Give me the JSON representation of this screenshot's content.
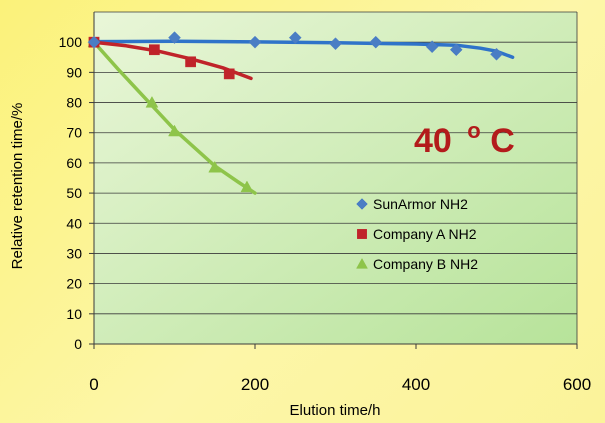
{
  "chart_data": {
    "type": "scatter",
    "title": "",
    "annotation": {
      "text": "40",
      "superscript": "o",
      "unit": "C",
      "color": "#b31b1b"
    },
    "xlabel": "Elution time/h",
    "ylabel": "Relative retention time/%",
    "xlim": [
      0,
      600
    ],
    "ylim": [
      0,
      110
    ],
    "x_ticks": [
      0,
      200,
      400,
      600
    ],
    "y_ticks": [
      0,
      10,
      20,
      30,
      40,
      50,
      60,
      70,
      80,
      90,
      100
    ],
    "grid": true,
    "legend_position": "right",
    "plot_background": [
      "#e9f6d8",
      "#b7e39a"
    ],
    "series": [
      {
        "name": "SunArmor NH2",
        "color": "#4a7dc4",
        "line_color": "#2f73c9",
        "marker": "diamond",
        "points": [
          [
            0,
            100
          ],
          [
            100,
            101.5
          ],
          [
            200,
            100
          ],
          [
            250,
            101.5
          ],
          [
            300,
            99.5
          ],
          [
            350,
            100
          ],
          [
            420,
            98.5
          ],
          [
            450,
            97.5
          ],
          [
            500,
            96
          ]
        ],
        "trend": [
          [
            0,
            100.2
          ],
          [
            100,
            100.3
          ],
          [
            200,
            100.1
          ],
          [
            300,
            99.8
          ],
          [
            400,
            99.4
          ],
          [
            450,
            99
          ],
          [
            480,
            98
          ],
          [
            500,
            97
          ],
          [
            520,
            95
          ]
        ]
      },
      {
        "name": "Company A NH2",
        "color": "#c0232a",
        "line_color": "#c0232a",
        "marker": "square",
        "points": [
          [
            0,
            100
          ],
          [
            75,
            97.5
          ],
          [
            120,
            93.5
          ],
          [
            168,
            89.5
          ]
        ],
        "trend": [
          [
            0,
            100
          ],
          [
            40,
            98.8
          ],
          [
            80,
            97
          ],
          [
            120,
            94.5
          ],
          [
            160,
            91.5
          ],
          [
            195,
            88
          ]
        ]
      },
      {
        "name": "Company B NH2",
        "color": "#8ec44a",
        "line_color": "#8ec44a",
        "marker": "triangle",
        "points": [
          [
            0,
            100
          ],
          [
            72,
            80
          ],
          [
            100,
            70.5
          ],
          [
            150,
            58.5
          ],
          [
            190,
            52
          ]
        ],
        "trend": [
          [
            0,
            100
          ],
          [
            30,
            91
          ],
          [
            72,
            79
          ],
          [
            100,
            71
          ],
          [
            150,
            59
          ],
          [
            180,
            53.5
          ],
          [
            200,
            50
          ]
        ]
      }
    ]
  }
}
